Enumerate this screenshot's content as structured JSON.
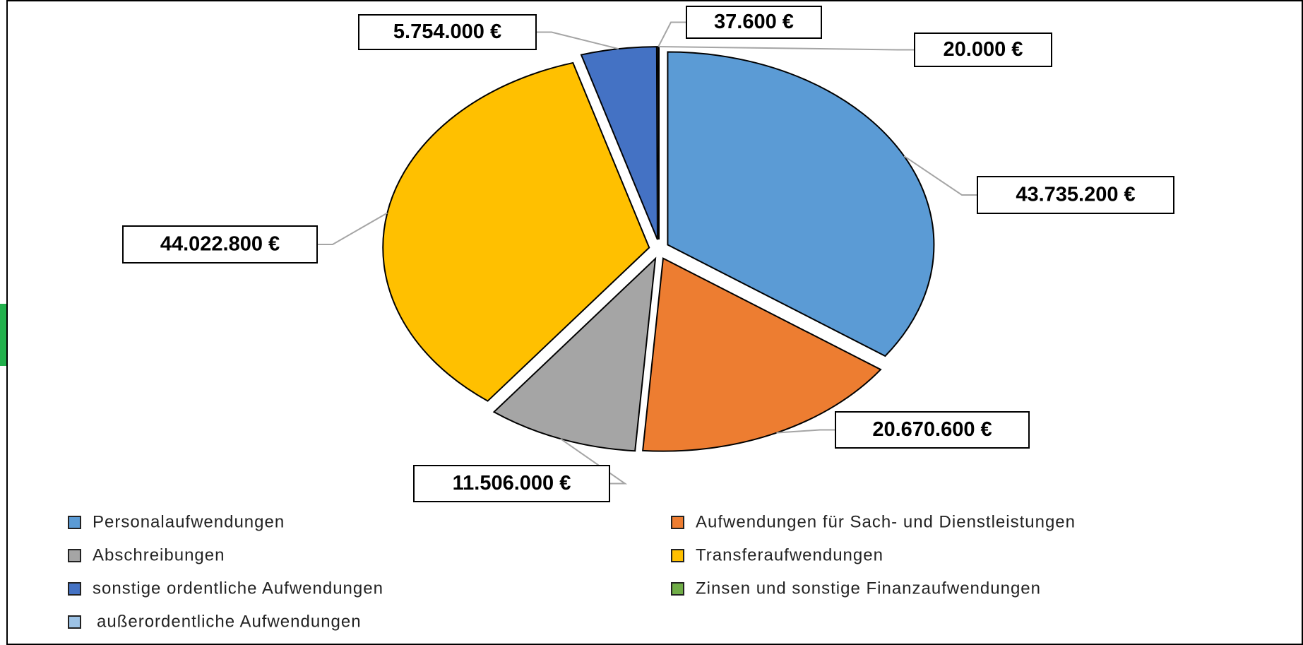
{
  "chart_data": {
    "type": "pie",
    "categories": [
      "Personalaufwendungen",
      "Aufwendungen für Sach- und Dienstleistungen",
      "Abschreibungen",
      "Transferaufwendungen",
      "sonstige ordentliche Aufwendungen",
      "Zinsen und sonstige Finanzaufwendungen",
      "außerordentliche Aufwendungen"
    ],
    "values": [
      43735200,
      20670600,
      11506000,
      44022800,
      5754000,
      37600,
      20000
    ],
    "value_labels": [
      "43.735.200 €",
      "20.670.600 €",
      "11.506.000 €",
      "44.022.800 €",
      "5.754.000 €",
      "37.600 €",
      "20.000 €"
    ],
    "colors": [
      "#5b9bd5",
      "#ed7d31",
      "#a5a5a5",
      "#ffc000",
      "#4472c4",
      "#70ad47",
      "#9dc3e6"
    ],
    "legend": "bottom"
  }
}
